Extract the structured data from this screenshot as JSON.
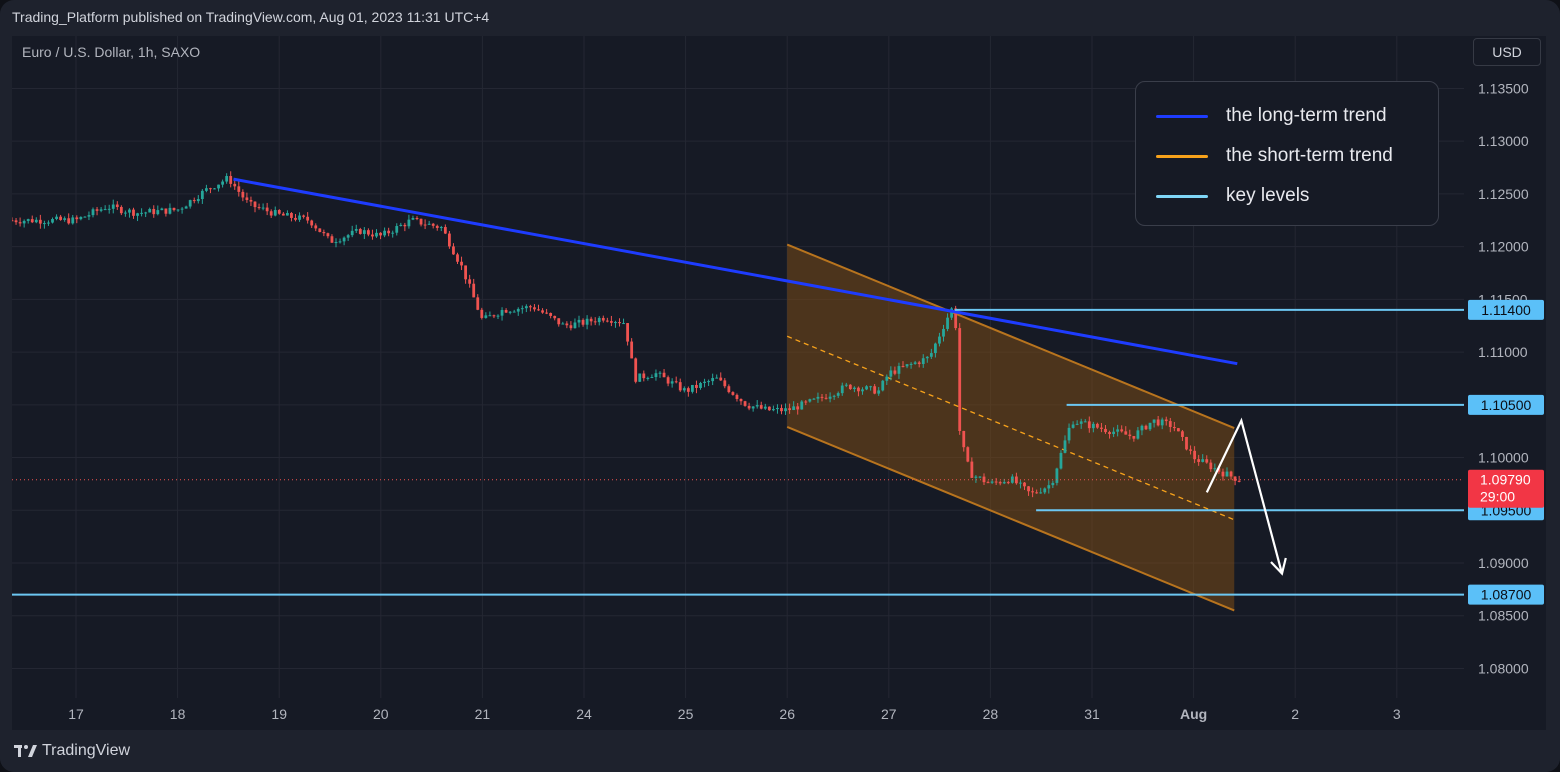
{
  "header": {
    "published_line": "Trading_Platform published on TradingView.com, Aug 01, 2023 11:31 UTC+4"
  },
  "symbol_info": "Euro / U.S. Dollar, 1h, SAXO",
  "currency_button": "USD",
  "legend": [
    {
      "label": "the long-term trend",
      "color": "#1e3cff"
    },
    {
      "label": "the short-term trend",
      "color": "#f7a21b"
    },
    {
      "label": "key levels",
      "color": "#7fd6f7"
    }
  ],
  "footer": {
    "brand": "TradingView"
  },
  "colors": {
    "background": "#161a25",
    "up": "#26a69a",
    "down": "#ef5350",
    "grid": "#242733",
    "key_level": "#6cc7f2",
    "trend": "#1e3cff",
    "channel_fill": "#7a4b16",
    "channel_border": "#b8741e"
  },
  "chart_data": {
    "type": "candlestick",
    "title": "Euro / U.S. Dollar, 1h, SAXO",
    "x_ticks": [
      "17",
      "18",
      "19",
      "20",
      "21",
      "24",
      "25",
      "26",
      "27",
      "28",
      "31",
      "Aug",
      "2",
      "3"
    ],
    "y_ticks": [
      "1.13500",
      "1.13000",
      "1.12500",
      "1.12000",
      "1.11500",
      "1.11000",
      "1.10500",
      "1.10000",
      "1.09500",
      "1.09000",
      "1.08500",
      "1.08000"
    ],
    "ylim": [
      1.0772,
      1.1395
    ],
    "price_path": [
      [
        0,
        1.1225
      ],
      [
        0.3,
        1.1238
      ],
      [
        0.6,
        1.1232
      ],
      [
        1.0,
        1.1235
      ],
      [
        1.3,
        1.1255
      ],
      [
        1.5,
        1.1265
      ],
      [
        1.7,
        1.124
      ],
      [
        2.0,
        1.123
      ],
      [
        2.3,
        1.1225
      ],
      [
        2.5,
        1.1205
      ],
      [
        2.8,
        1.1215
      ],
      [
        3.0,
        1.121
      ],
      [
        3.3,
        1.1225
      ],
      [
        3.6,
        1.1218
      ],
      [
        3.8,
        1.118
      ],
      [
        4.0,
        1.113
      ],
      [
        4.2,
        1.114
      ],
      [
        4.5,
        1.1143
      ],
      [
        4.8,
        1.1125
      ],
      [
        5.0,
        1.1128
      ],
      [
        5.2,
        1.1133
      ],
      [
        5.4,
        1.1128
      ],
      [
        5.5,
        1.1075
      ],
      [
        5.7,
        1.108
      ],
      [
        6.0,
        1.1063
      ],
      [
        6.3,
        1.1075
      ],
      [
        6.6,
        1.105
      ],
      [
        6.8,
        1.1045
      ],
      [
        7.0,
        1.1045
      ],
      [
        7.3,
        1.1055
      ],
      [
        7.6,
        1.1068
      ],
      [
        7.9,
        1.1063
      ],
      [
        8.0,
        1.108
      ],
      [
        8.4,
        1.1095
      ],
      [
        8.6,
        1.1138
      ],
      [
        8.65,
        1.1145
      ],
      [
        8.7,
        1.102
      ],
      [
        8.8,
        1.0985
      ],
      [
        9.0,
        1.0975
      ],
      [
        9.2,
        1.098
      ],
      [
        9.4,
        1.0965
      ],
      [
        9.6,
        1.0975
      ],
      [
        9.8,
        1.1035
      ],
      [
        10.0,
        1.103
      ],
      [
        10.2,
        1.1025
      ],
      [
        10.4,
        1.102
      ],
      [
        10.6,
        1.1035
      ],
      [
        10.8,
        1.103
      ],
      [
        11.0,
        1.1
      ],
      [
        11.2,
        1.099
      ],
      [
        11.3,
        1.0985
      ],
      [
        11.45,
        1.0979
      ]
    ],
    "last_candle_range": [
      9.0,
      11.45
    ],
    "long_term_trend": {
      "from": [
        1.55,
        1.1264
      ],
      "to": [
        11.43,
        1.1089
      ]
    },
    "short_term_channel": {
      "upper": {
        "from": [
          7.0,
          1.1202
        ],
        "to": [
          11.4,
          1.1028
        ]
      },
      "lower": {
        "from": [
          7.0,
          1.1029
        ],
        "to": [
          11.4,
          1.0855
        ]
      },
      "midline": {
        "from": [
          7.0,
          1.1115
        ],
        "to": [
          11.4,
          1.0941
        ]
      }
    },
    "key_levels": [
      {
        "label": "1.11400",
        "value": 1.114,
        "from_x": 8.65
      },
      {
        "label": "1.10500",
        "value": 1.105,
        "from_x": 9.75
      },
      {
        "label": "1.09500",
        "value": 1.095,
        "from_x": 9.45
      },
      {
        "label": "1.08700",
        "value": 1.087,
        "from_x": 0
      }
    ],
    "current_price": {
      "label": "1.09790",
      "value": 1.0979,
      "countdown": "29:00"
    },
    "projection": [
      [
        11.13,
        1.0967
      ],
      [
        11.47,
        1.1035
      ],
      [
        11.87,
        1.089
      ]
    ]
  }
}
